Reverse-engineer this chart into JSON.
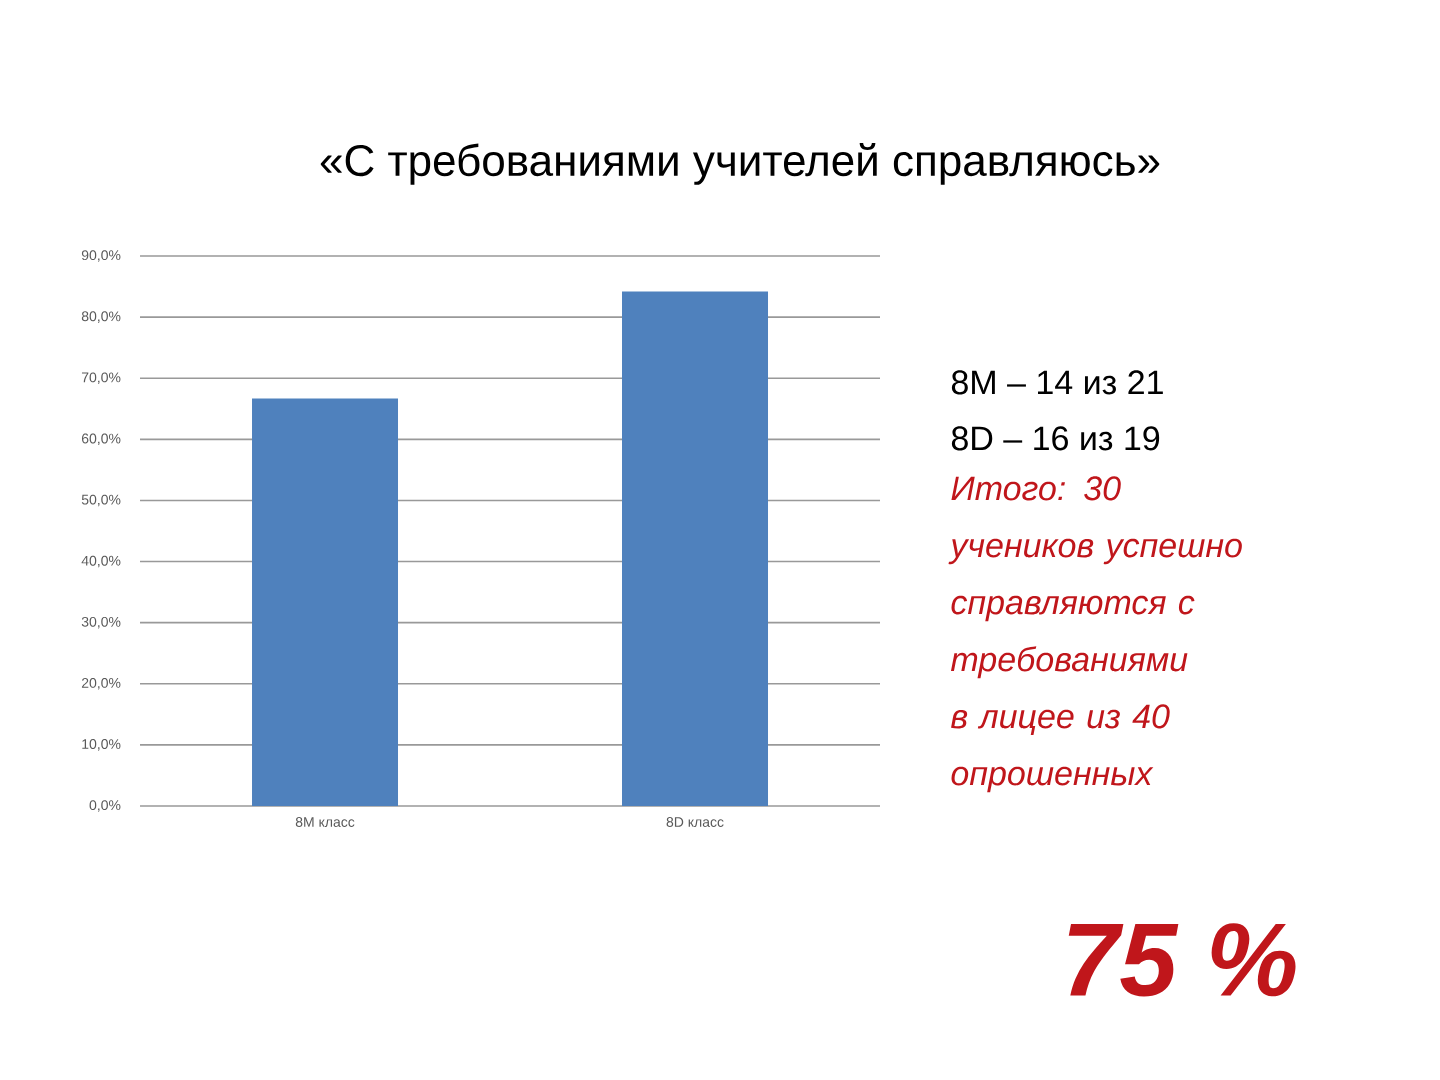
{
  "chart_data": {
    "type": "bar",
    "title": "«С требованиями учителей справляюсь»",
    "categories": [
      "8М класс",
      "8D класс"
    ],
    "values": [
      66.7,
      84.2
    ],
    "color": "#4f81bd",
    "ylim": [
      0,
      90
    ],
    "yticks": [
      {
        "value": 0,
        "label": "0,0%"
      },
      {
        "value": 10,
        "label": "10,0%"
      },
      {
        "value": 20,
        "label": "20,0%"
      },
      {
        "value": 30,
        "label": "30,0%"
      },
      {
        "value": 40,
        "label": "40,0%"
      },
      {
        "value": 50,
        "label": "50,0%"
      },
      {
        "value": 60,
        "label": "60,0%"
      },
      {
        "value": 70,
        "label": "70,0%"
      },
      {
        "value": 80,
        "label": "80,0%"
      },
      {
        "value": 90,
        "label": "90,0%"
      }
    ],
    "grid": "y",
    "annotations": [
      "8М – 14 из 21",
      "8D – 16 из 19",
      "Итого: 30 учеников успешно справляются с требованиями в лицее из 40 опрошенных",
      "75 %"
    ]
  }
}
